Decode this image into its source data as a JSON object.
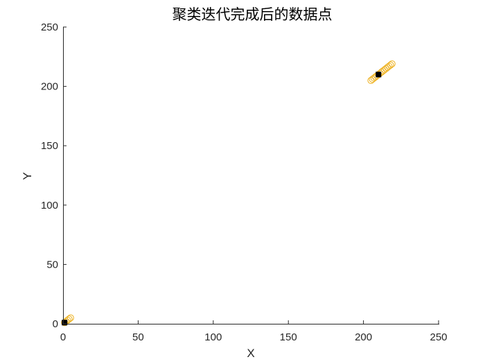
{
  "chart_data": {
    "type": "scatter",
    "title": "聚类迭代完成后的数据点",
    "xlabel": "X",
    "ylabel": "Y",
    "xlim": [
      0,
      250
    ],
    "ylim": [
      0,
      250
    ],
    "xticks": [
      "0",
      "50",
      "100",
      "150",
      "200",
      "250"
    ],
    "yticks": [
      "0",
      "50",
      "100",
      "150",
      "200",
      "250"
    ],
    "grid": false,
    "series": [
      {
        "marker": "circle-open",
        "color": "#EDB120",
        "points": [
          [
            1,
            1
          ],
          [
            2,
            2
          ],
          [
            3,
            3
          ],
          [
            4,
            4
          ],
          [
            5,
            5
          ],
          [
            205,
            205
          ],
          [
            206,
            206
          ],
          [
            207,
            207
          ],
          [
            208,
            208
          ],
          [
            209,
            209
          ],
          [
            210,
            210
          ],
          [
            211,
            211
          ],
          [
            212,
            212
          ],
          [
            213,
            213
          ],
          [
            214,
            214
          ],
          [
            215,
            215
          ],
          [
            216,
            216
          ],
          [
            217,
            217
          ],
          [
            218,
            218
          ],
          [
            219,
            219
          ]
        ]
      },
      {
        "marker": "square-filled",
        "color": "#000000",
        "points": [
          [
            1,
            1
          ],
          [
            210,
            210
          ]
        ]
      }
    ]
  }
}
